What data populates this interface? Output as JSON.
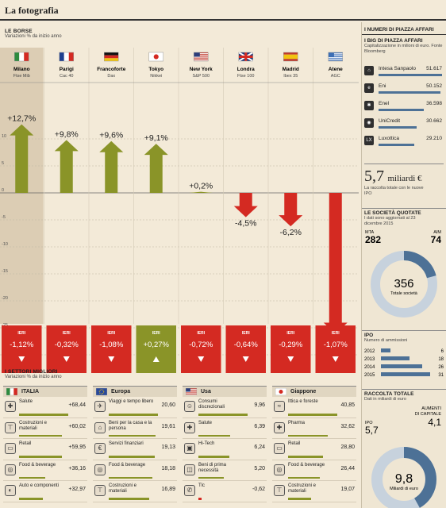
{
  "page_title": "La fotografia",
  "borse": {
    "title": "LE BORSE",
    "subtitle": "Variazioni % da inizio anno",
    "ieri_label": "IERI"
  },
  "chart_data": [
    {
      "type": "bar",
      "title": "LE BORSE",
      "subtitle": "Variazioni % da inizio anno",
      "categories": [
        "Milano",
        "Parigi",
        "Francoforte",
        "Tokyo",
        "New York",
        "Londra",
        "Madrid",
        "Atene"
      ],
      "indices": [
        "Ftse Mib",
        "Cac 40",
        "Dax",
        "Nikkei",
        "S&P 500",
        "Ftse 100",
        "Ibex 35",
        "AGC"
      ],
      "flags": [
        "italy",
        "france",
        "germany",
        "japan",
        "usa",
        "uk",
        "spain",
        "greece"
      ],
      "values": [
        12.7,
        9.8,
        9.6,
        9.1,
        0.2,
        -4.5,
        -6.2,
        -26.1
      ],
      "value_labels": [
        "+12,7%",
        "+9,8%",
        "+9,6%",
        "+9,1%",
        "+0,2%",
        "-4,5%",
        "-6,2%",
        "-26,1%"
      ],
      "yticks": [
        10,
        5,
        0,
        -5,
        -10,
        -15,
        -20,
        -25,
        -30
      ],
      "ylim": [
        -30,
        15
      ],
      "colors": {
        "positive": "#8a9428",
        "negative": "#d42a22"
      },
      "ieri_values": [
        -1.12,
        -0.32,
        -1.08,
        0.27,
        -0.72,
        -0.64,
        -0.29,
        -1.07
      ],
      "ieri_labels": [
        "-1,12%",
        "-0,32%",
        "-1,08%",
        "+0,27%",
        "-0,72%",
        "-0,64%",
        "-0,29%",
        "-1,07%"
      ],
      "highlight": "Milano"
    },
    {
      "type": "bar",
      "title": "I SETTORI MIGLIORI",
      "subtitle": "Variazioni % da inizio anno",
      "panels": [
        {
          "market": "ITALIA",
          "flag": "italy",
          "sectors": [
            {
              "name": "Salute",
              "value": 68.44,
              "label": "+68,44",
              "icon": "health-icon"
            },
            {
              "name": "Costruzioni e materiali",
              "value": 60.02,
              "label": "+60,02",
              "icon": "crane-icon"
            },
            {
              "name": "Retail",
              "value": 59.95,
              "label": "+59,95",
              "icon": "retail-icon"
            },
            {
              "name": "Food & beverage",
              "value": 36.16,
              "label": "+36,16",
              "icon": "food-icon"
            },
            {
              "name": "Auto e componenti",
              "value": 32.97,
              "label": "+32,97",
              "icon": "car-icon"
            }
          ]
        },
        {
          "market": "Europa",
          "flag": "eu",
          "sectors": [
            {
              "name": "Viaggi e tempo libero",
              "value": 20.6,
              "label": "20,60",
              "icon": "travel-icon"
            },
            {
              "name": "Beni per la casa e la persona",
              "value": 19.61,
              "label": "19,61",
              "icon": "home-icon"
            },
            {
              "name": "Servizi finanziari",
              "value": 19.13,
              "label": "19,13",
              "icon": "finance-icon"
            },
            {
              "name": "Food & beverage",
              "value": 18.18,
              "label": "18,18",
              "icon": "food-icon"
            },
            {
              "name": "Costruzioni e materiali",
              "value": 16.89,
              "label": "16,89",
              "icon": "crane-icon"
            }
          ]
        },
        {
          "market": "Usa",
          "flag": "usa",
          "sectors": [
            {
              "name": "Consumi discrezionali",
              "value": 9.96,
              "label": "9,96",
              "icon": "consumer-icon"
            },
            {
              "name": "Salute",
              "value": 6.39,
              "label": "6,39",
              "icon": "health-icon"
            },
            {
              "name": "Hi-Tech",
              "value": 6.24,
              "label": "6,24",
              "icon": "tech-icon"
            },
            {
              "name": "Beni di prima necessità",
              "value": 5.2,
              "label": "5,20",
              "icon": "basket-icon"
            },
            {
              "name": "Tlc",
              "value": -0.62,
              "label": "-0,62",
              "icon": "telecom-icon"
            }
          ]
        },
        {
          "market": "Giappone",
          "flag": "japan",
          "sectors": [
            {
              "name": "Ittica e foreste",
              "value": 40.85,
              "label": "40,85",
              "icon": "fish-icon"
            },
            {
              "name": "Pharma",
              "value": 32.62,
              "label": "32,62",
              "icon": "pharma-icon"
            },
            {
              "name": "Retail",
              "value": 28.8,
              "label": "28,80",
              "icon": "retail-icon"
            },
            {
              "name": "Food & beverage",
              "value": 26.44,
              "label": "26,44",
              "icon": "food-icon"
            },
            {
              "name": "Costruzioni e materiali",
              "value": 19.07,
              "label": "19,07",
              "icon": "crane-icon"
            }
          ]
        }
      ]
    },
    {
      "type": "bar",
      "title": "I BIG DI PIAZZA AFFARI",
      "subtitle": "Capitalizzazione in milioni di euro. Fonte Bloomberg",
      "categories": [
        "Intesa Sanpaolo",
        "Eni",
        "Enel",
        "UniCredit",
        "Luxottica"
      ],
      "values": [
        51617,
        50152,
        36598,
        30662,
        29210
      ],
      "value_labels": [
        "51.617",
        "50.152",
        "36.598",
        "30.662",
        "29.210"
      ]
    },
    {
      "type": "pie",
      "title": "LE SOCIETÀ QUOTATE",
      "subtitle": "I dati sono aggiornati al 23 dicembre 2015",
      "categories": [
        "MTA",
        "AIM"
      ],
      "values": [
        282,
        74
      ],
      "total": 356,
      "total_label": "Totale società"
    },
    {
      "type": "bar",
      "title": "IPO",
      "subtitle": "Numero di ammissioni",
      "categories": [
        "2012",
        "2013",
        "2014",
        "2015"
      ],
      "values": [
        6,
        18,
        26,
        31
      ]
    },
    {
      "type": "pie",
      "title": "RACCOLTA TOTALE",
      "subtitle": "Dati in miliardi di euro",
      "categories": [
        "IPO",
        "AUMENTI DI CAPITALE"
      ],
      "values": [
        5.7,
        4.1
      ],
      "value_labels": [
        "5,7",
        "4,1"
      ],
      "total_label": "9,8",
      "center_caption": "Miliardi di euro"
    }
  ],
  "sidebar": {
    "header": "I NUMERI DI PIAZZA AFFARI",
    "raccolta_value": "5,7",
    "raccolta_unit": "miliardi €",
    "raccolta_caption": "La raccolta totale con le nuove IPO"
  },
  "settori": {
    "title": "I SETTORI MIGLIORI",
    "subtitle": "Variazioni % da inizio anno"
  }
}
